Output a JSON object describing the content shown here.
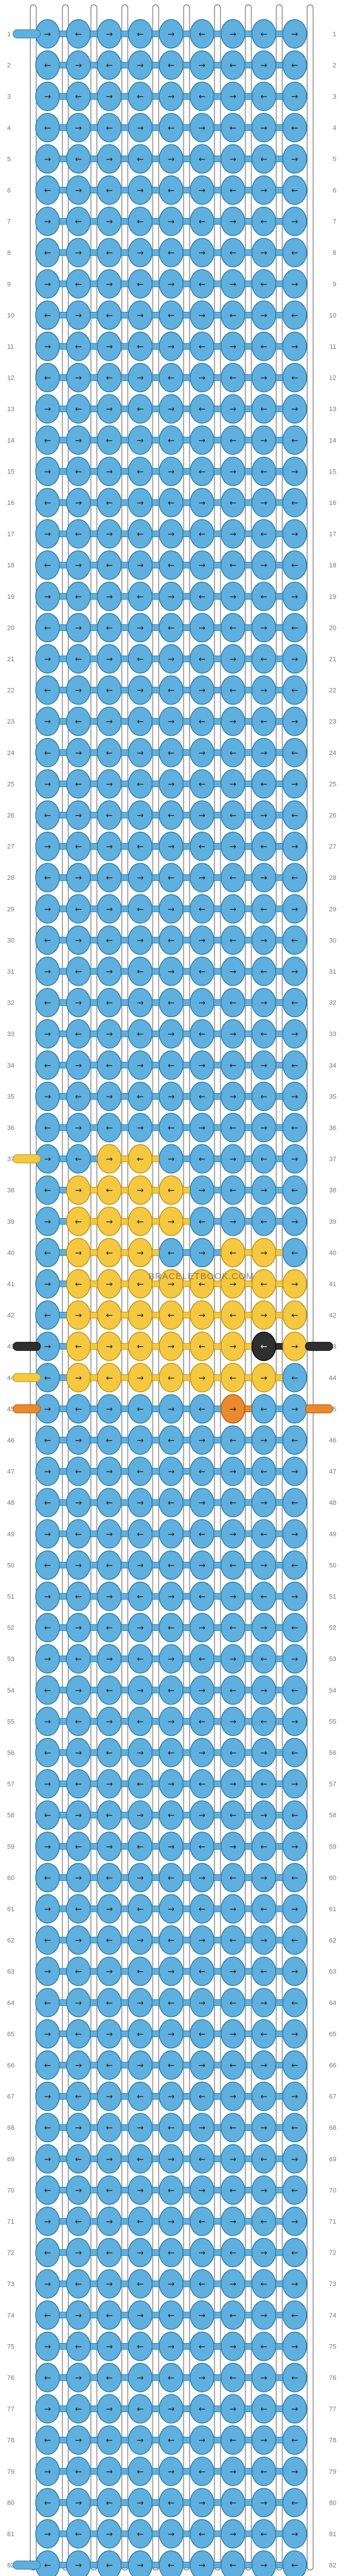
{
  "pattern": {
    "rows": 82,
    "strings": 10,
    "watermark": "BRACELETBOOK.COM",
    "colors": {
      "blue": "#5fb0de",
      "yellow": "#f5c842",
      "black": "#2f2f2f",
      "orange": "#ea8a2e"
    },
    "row_labels": [
      "1",
      "2",
      "3",
      "4",
      "5",
      "6",
      "7",
      "8",
      "9",
      "10",
      "11",
      "12",
      "13",
      "14",
      "15",
      "16",
      "17",
      "18",
      "19",
      "20",
      "21",
      "22",
      "23",
      "24",
      "25",
      "26",
      "27",
      "28",
      "29",
      "30",
      "31",
      "32",
      "33",
      "34",
      "35",
      "36",
      "37",
      "38",
      "39",
      "40",
      "41",
      "42",
      "43",
      "44",
      "45",
      "46",
      "47",
      "48",
      "49",
      "50",
      "51",
      "52",
      "53",
      "54",
      "55",
      "56",
      "57",
      "58",
      "59",
      "60",
      "61",
      "62",
      "63",
      "64",
      "65",
      "66",
      "67",
      "68",
      "69",
      "70",
      "71",
      "72",
      "73",
      "74",
      "75",
      "76",
      "77",
      "78",
      "79",
      "80",
      "81",
      "82"
    ],
    "entry_strings": {
      "1": "blue",
      "37": "yellow",
      "43": "black",
      "44": "yellow",
      "45": "orange",
      "82": "blue"
    },
    "exit_strings": {
      "43": "black",
      "45": "orange"
    },
    "knot_overrides": {
      "37": {
        "2": "yellow",
        "3": "yellow"
      },
      "38": {
        "1": "yellow",
        "2": "yellow",
        "3": "yellow",
        "4": "yellow"
      },
      "39": {
        "1": "yellow",
        "2": "yellow",
        "3": "yellow",
        "4": "yellow"
      },
      "40": {
        "1": "yellow",
        "2": "yellow",
        "3": "yellow",
        "6": "yellow",
        "7": "yellow"
      },
      "41": {
        "1": "yellow",
        "2": "yellow",
        "3": "yellow",
        "4": "yellow",
        "5": "yellow",
        "6": "yellow",
        "7": "yellow",
        "8": "yellow"
      },
      "42": {
        "1": "yellow",
        "2": "yellow",
        "3": "yellow",
        "4": "yellow",
        "5": "yellow",
        "6": "yellow",
        "7": "yellow",
        "8": "yellow"
      },
      "43": {
        "1": "yellow",
        "2": "yellow",
        "3": "yellow",
        "4": "yellow",
        "5": "yellow",
        "6": "yellow",
        "7": "black",
        "8": "yellow"
      },
      "44": {
        "1": "yellow",
        "2": "yellow",
        "3": "yellow",
        "4": "yellow",
        "5": "yellow",
        "6": "yellow",
        "7": "yellow"
      },
      "45": {
        "6": "orange"
      }
    }
  }
}
